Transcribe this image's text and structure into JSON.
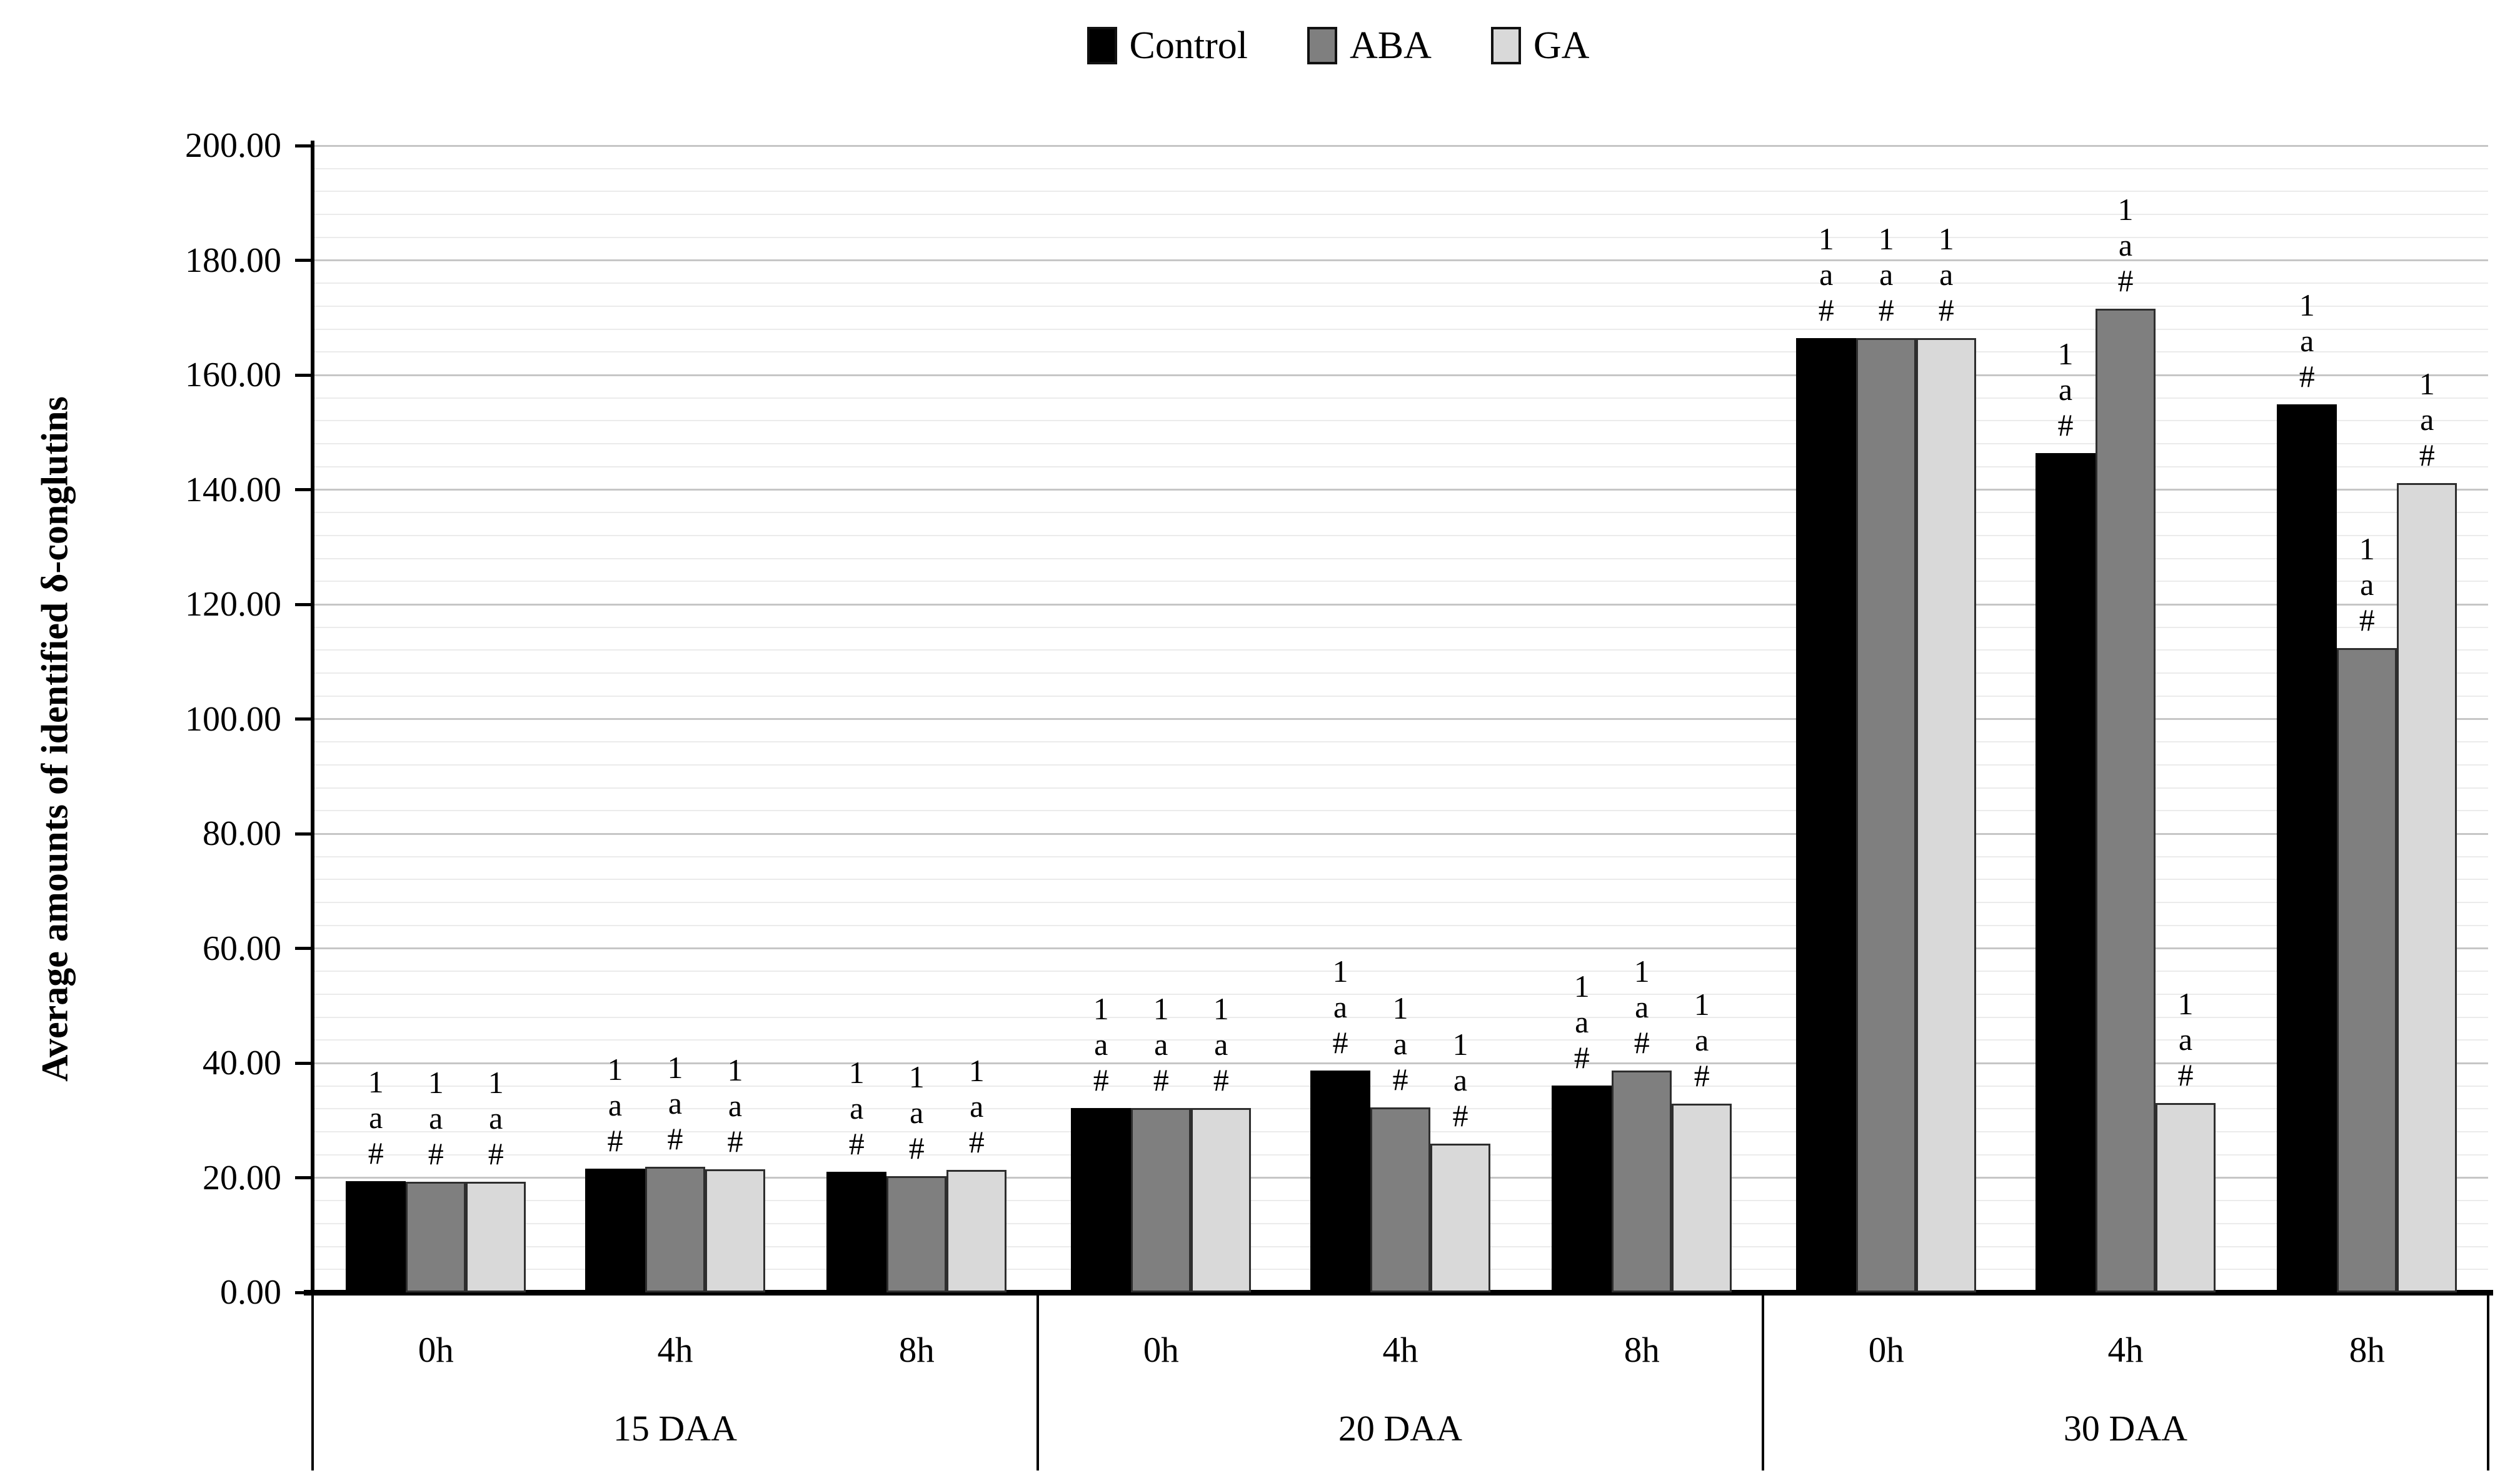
{
  "legend": {
    "items": [
      {
        "label": "Control",
        "color": "#000000"
      },
      {
        "label": "ABA",
        "color": "#7f7f7f"
      },
      {
        "label": "GA",
        "color": "#d9d9d9"
      }
    ]
  },
  "y_axis": {
    "title": "Average amounts of identified δ-conglutins",
    "min": 0,
    "max": 200,
    "major_step": 20,
    "minor_step": 4,
    "tick_labels": [
      "0.00",
      "20.00",
      "40.00",
      "60.00",
      "80.00",
      "100.00",
      "120.00",
      "140.00",
      "160.00",
      "180.00",
      "200.00"
    ]
  },
  "chart_data": {
    "type": "bar",
    "title": "",
    "xlabel": "",
    "ylabel": "Average amounts of identified δ-conglutins",
    "ylim": [
      0,
      200
    ],
    "grid": "horizontal major 20 / minor 4",
    "legend_position": "top-center",
    "series": [
      "Control",
      "ABA",
      "GA"
    ],
    "series_colors": [
      "#000000",
      "#7f7f7f",
      "#d9d9d9"
    ],
    "annotation_lines": [
      "1",
      "a",
      "#"
    ],
    "annotation_note": "every bar is annotated with stacked 1 / a / # above its top",
    "groups": [
      {
        "label": "15 DAA",
        "subgroups": [
          {
            "label": "0h",
            "values": [
              19.4,
              19.3,
              19.3
            ]
          },
          {
            "label": "4h",
            "values": [
              21.6,
              21.9,
              21.5
            ]
          },
          {
            "label": "8h",
            "values": [
              21.0,
              20.3,
              21.4
            ]
          }
        ]
      },
      {
        "label": "20 DAA",
        "subgroups": [
          {
            "label": "0h",
            "values": [
              32.2,
              32.2,
              32.2
            ]
          },
          {
            "label": "4h",
            "values": [
              38.7,
              32.3,
              25.9
            ]
          },
          {
            "label": "8h",
            "values": [
              36.1,
              38.7,
              32.9
            ]
          }
        ]
      },
      {
        "label": "30 DAA",
        "subgroups": [
          {
            "label": "0h",
            "values": [
              166.4,
              166.4,
              166.4
            ]
          },
          {
            "label": "4h",
            "values": [
              146.4,
              171.5,
              33.0
            ]
          },
          {
            "label": "8h",
            "values": [
              154.9,
              112.4,
              141.1
            ]
          }
        ]
      }
    ]
  }
}
